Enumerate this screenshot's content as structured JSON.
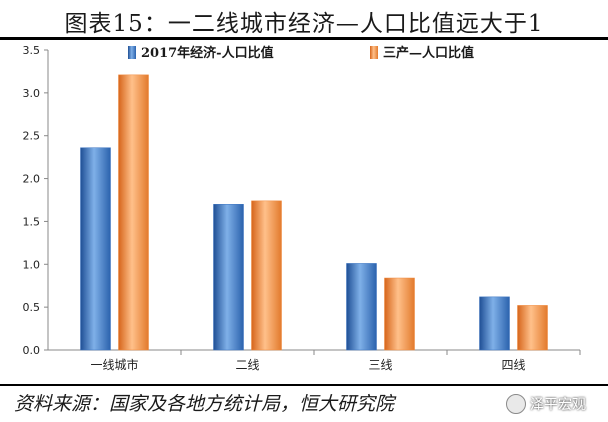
{
  "header": {
    "title": "图表15：一二线城市经济—人口比值远大于1"
  },
  "footer": {
    "source": "资料来源：国家及各地方统计局，恒大研究院",
    "watermark": "泽平宏观"
  },
  "colors": {
    "series1": "#3a73c0",
    "series2": "#f0883a",
    "axis": "#888888"
  },
  "chart_data": {
    "type": "bar",
    "categories": [
      "一线城市",
      "二线",
      "三线",
      "四线"
    ],
    "series": [
      {
        "name": "2017年经济-人口比值",
        "values": [
          2.36,
          1.7,
          1.01,
          0.62
        ]
      },
      {
        "name": "三产—人口比值",
        "values": [
          3.21,
          1.74,
          0.84,
          0.52
        ]
      }
    ],
    "ylim": [
      0,
      3.5
    ],
    "yticks": [
      "0.0",
      "0.5",
      "1.0",
      "1.5",
      "2.0",
      "2.5",
      "3.0",
      "3.5"
    ],
    "legend": "top",
    "grid": false
  }
}
